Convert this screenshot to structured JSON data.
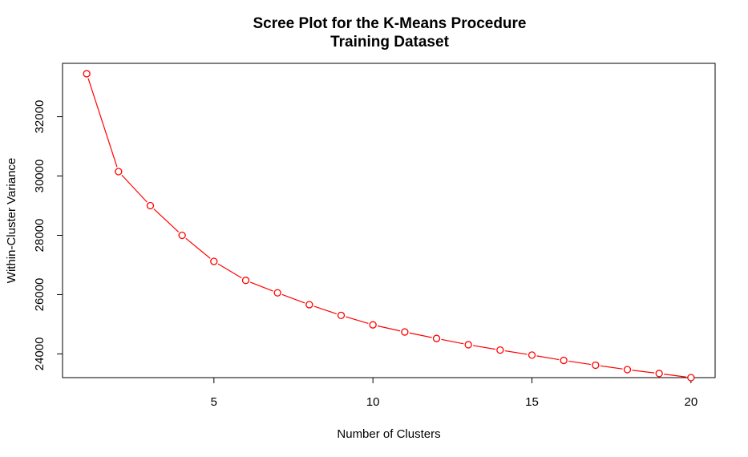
{
  "chart_data": {
    "type": "line",
    "title": "Scree Plot for the K-Means Procedure",
    "subtitle": "Training Dataset",
    "xlabel": "Number of Clusters",
    "ylabel": "Within-Cluster Variance",
    "xlim": [
      0.24,
      20.76
    ],
    "ylim": [
      23200,
      33800
    ],
    "xticks": [
      5,
      10,
      15,
      20
    ],
    "yticks": [
      24000,
      26000,
      28000,
      30000,
      32000
    ],
    "grid": false,
    "line_color": "#ff0000",
    "marker": "open-circle",
    "series": [
      {
        "x": [
          1,
          2,
          3,
          4,
          5,
          6,
          7,
          8,
          9,
          10,
          11,
          12,
          13,
          14,
          15,
          16,
          17,
          18,
          19,
          20
        ],
        "values": [
          33450,
          30150,
          29000,
          28000,
          27120,
          26480,
          26060,
          25660,
          25300,
          24980,
          24740,
          24520,
          24310,
          24130,
          23960,
          23780,
          23620,
          23470,
          23340,
          23200
        ]
      }
    ]
  }
}
